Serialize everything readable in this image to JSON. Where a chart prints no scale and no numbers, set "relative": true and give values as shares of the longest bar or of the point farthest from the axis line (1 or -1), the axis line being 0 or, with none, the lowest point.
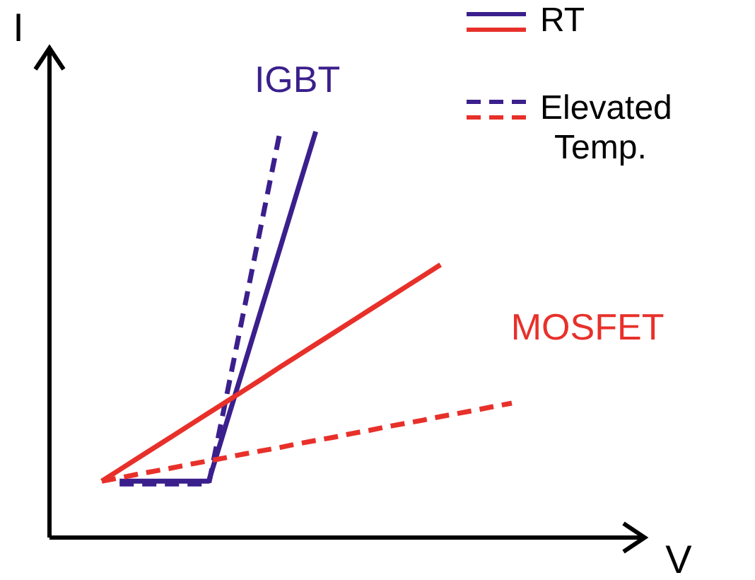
{
  "chart_data": {
    "type": "line",
    "relative": true,
    "xlabel": "V",
    "ylabel": "I",
    "legend": "top right",
    "marker": "none",
    "annotations": [
      "IGBT",
      "MOSFET"
    ],
    "categories": [
      null,
      null,
      null,
      null,
      null,
      null,
      null,
      null,
      null,
      null,
      null,
      null,
      null,
      null,
      null,
      null,
      null,
      null,
      null,
      null,
      null,
      null,
      null,
      null
    ],
    "series": [
      {
        "name": "RT",
        "color": "#3b1f8c",
        "line_style": "solid",
        "values": [
          null,
          0.139,
          0.139,
          0.139,
          0.139,
          0.139,
          0.139,
          0.283,
          0.426,
          0.57,
          0.713,
          0.857,
          1,
          null,
          null,
          null,
          null,
          null,
          null,
          null,
          null,
          null,
          null,
          null
        ]
      },
      {
        "name": "Elevated Temp.",
        "color": "#3b1f8c",
        "line_style": "dashed",
        "values": [
          null,
          0.132,
          0.132,
          0.132,
          0.132,
          0.132,
          0.132,
          0.349,
          0.566,
          0.783,
          1,
          null,
          null,
          null,
          null,
          null,
          null,
          null,
          null,
          null,
          null,
          null,
          null,
          null
        ]
      },
      {
        "color": "#e8302a",
        "line_style": "solid",
        "values": [
          0.139,
          0.167,
          0.195,
          0.223,
          0.251,
          0.279,
          0.307,
          0.335,
          0.363,
          0.391,
          0.42,
          0.448,
          0.476,
          0.504,
          0.532,
          0.56,
          0.588,
          0.616,
          0.644,
          0.672,
          null,
          null,
          null,
          null
        ]
      },
      {
        "color": "#e8302a",
        "line_style": "dashed",
        "values": [
          0.139,
          0.147,
          0.156,
          0.164,
          0.172,
          0.181,
          0.189,
          0.197,
          0.206,
          0.214,
          0.222,
          0.231,
          0.239,
          0.247,
          0.256,
          0.264,
          0.273,
          0.281,
          0.289,
          0.298,
          0.306,
          0.314,
          0.323,
          0.331
        ]
      }
    ]
  }
}
